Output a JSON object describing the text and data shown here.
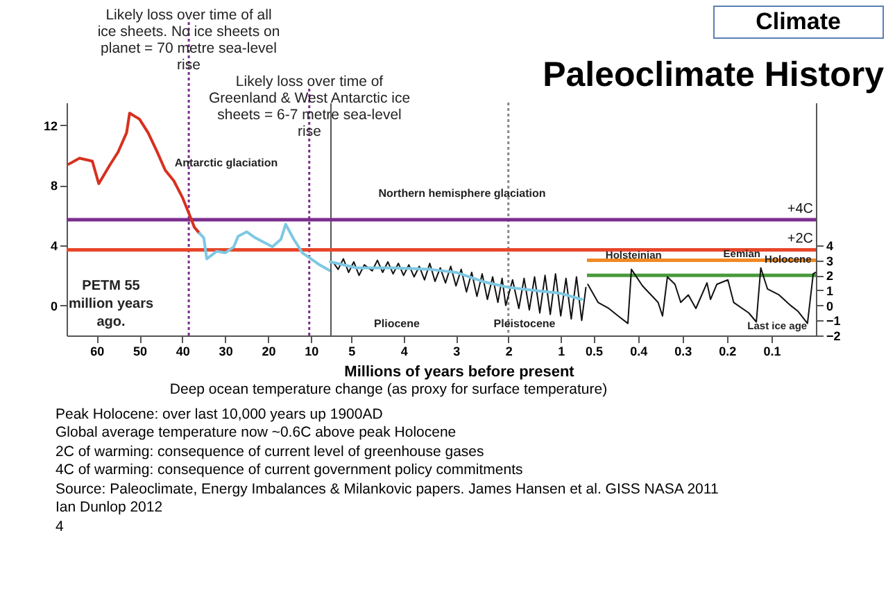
{
  "chart_data": [
    {
      "type": "line",
      "xlim": [
        67,
        5.5
      ],
      "xticks": [
        60,
        50,
        40,
        30,
        20,
        10
      ],
      "ylim": [
        -2,
        13.5
      ],
      "yticks": [
        0,
        4,
        8,
        12
      ],
      "grid": false,
      "marker": "none",
      "series": [
        {
          "color": "#d7301f",
          "x": [
            66.5,
            64,
            61,
            59.5,
            57,
            55,
            53,
            52.3,
            50,
            48,
            46,
            44,
            42,
            40,
            38,
            37.2,
            36
          ],
          "values": [
            9.4,
            9.8,
            9.6,
            8.1,
            9.3,
            10.2,
            11.5,
            12.8,
            12.4,
            11.5,
            10.3,
            9.0,
            8.3,
            7.2,
            5.8,
            5.2,
            4.8
          ]
        },
        {
          "color": "#7ec8e3",
          "x": [
            36,
            35,
            34.3,
            32,
            30,
            28,
            27,
            25,
            23,
            21,
            19,
            17,
            15.9,
            14,
            12,
            10,
            8,
            5.5
          ],
          "values": [
            4.8,
            4.5,
            3.1,
            3.6,
            3.5,
            3.9,
            4.6,
            4.9,
            4.5,
            4.2,
            3.9,
            4.4,
            5.4,
            4.4,
            3.5,
            3.1,
            2.7,
            2.3
          ]
        }
      ],
      "ref_lines": [
        {
          "axis": "x",
          "value": 38.5,
          "label": null,
          "color": "#7b2d8e",
          "line_style": "dotted"
        },
        {
          "axis": "x",
          "value": 10.4,
          "label": null,
          "color": "#7b2d8e",
          "line_style": "dotted"
        },
        {
          "axis": "y",
          "value": 5.7,
          "label": null,
          "color": "#7b2d8e",
          "line_style": "solid"
        },
        {
          "axis": "y",
          "value": 3.7,
          "label": null,
          "color": "#e8462a",
          "line_style": "solid"
        }
      ],
      "annotations": [
        "Likely loss over time of all ice sheets. No ice sheets on planet = 70 metre sea-level rise",
        "Likely loss over time of Greenland & West Antarctic ice sheets = 6-7 metre sea-level rise",
        "Antarctic glaciation",
        "PETM 55 million years ago."
      ]
    },
    {
      "type": "line",
      "xlabel": "Millions of years before present",
      "xlim": [
        5.4,
        0.5
      ],
      "xticks": [
        5,
        4,
        3,
        2,
        1
      ],
      "ylim": [
        -2,
        13.5
      ],
      "tick_labels": "x",
      "grid": false,
      "marker": "none",
      "series": [
        {
          "color": "#111111",
          "x": [
            5.35,
            5.25,
            5.15,
            5.05,
            4.95,
            4.85,
            4.75,
            4.6,
            4.5,
            4.4,
            4.3,
            4.2,
            4.1,
            4.0,
            3.9,
            3.8,
            3.7,
            3.6,
            3.5,
            3.4,
            3.3,
            3.2,
            3.1,
            3.0,
            2.9,
            2.8,
            2.7,
            2.6,
            2.5,
            2.4,
            2.3,
            2.2,
            2.12,
            2.05,
            1.92,
            1.8,
            1.7,
            1.6,
            1.5,
            1.4,
            1.3,
            1.2,
            1.1,
            1.0,
            0.9,
            0.8,
            0.7,
            0.6,
            0.52
          ],
          "values": [
            2.9,
            2.4,
            3.1,
            2.2,
            2.9,
            2.0,
            2.7,
            2.3,
            3.0,
            2.2,
            2.9,
            2.1,
            2.8,
            2.0,
            2.7,
            1.9,
            2.6,
            1.7,
            2.8,
            1.6,
            2.5,
            1.5,
            2.6,
            1.3,
            2.4,
            0.9,
            2.2,
            0.6,
            2.1,
            0.4,
            1.9,
            0.2,
            1.8,
            0.0,
            1.7,
            -0.2,
            1.8,
            -0.3,
            1.9,
            -0.5,
            2.0,
            -0.6,
            2.1,
            -0.7,
            1.8,
            -0.9,
            1.9,
            -1.0,
            1.2
          ]
        },
        {
          "color": "#7ec8e3",
          "x": [
            5.4,
            4.9,
            4.2,
            3.5,
            3.0,
            2.5,
            2.0,
            1.5,
            1.0,
            0.6
          ],
          "values": [
            2.9,
            2.5,
            2.5,
            2.4,
            2.2,
            1.6,
            1.2,
            1.0,
            0.8,
            0.4
          ]
        }
      ],
      "ref_lines": [
        {
          "axis": "x",
          "value": 2,
          "label": null,
          "color": "#888888",
          "line_style": "dotted"
        },
        {
          "axis": "y",
          "value": 5.7,
          "label": null,
          "color": "#7b2d8e",
          "line_style": "solid"
        },
        {
          "axis": "y",
          "value": 3.7,
          "label": null,
          "color": "#e8462a",
          "line_style": "solid"
        }
      ],
      "annotations": [
        "Northern hemisphere glaciation",
        "Pliocene",
        "Pleistocene",
        "Deep ocean temperature change (as proxy for surface temperature)"
      ]
    },
    {
      "type": "line",
      "title": "Paleoclimate History",
      "subtitle": "Climate",
      "xlim": [
        0.515,
        0
      ],
      "xticks": [
        0.5,
        0.4,
        0.3,
        0.2,
        0.1
      ],
      "ylim": [
        -2,
        13.5
      ],
      "yticks": [
        -2,
        -1,
        0,
        1,
        2,
        3,
        4
      ],
      "grid": false,
      "marker": "none",
      "series": [
        {
          "color": "#111111",
          "x": [
            0.513,
            0.49,
            0.466,
            0.445,
            0.423,
            0.415,
            0.39,
            0.355,
            0.345,
            0.334,
            0.317,
            0.304,
            0.287,
            0.27,
            0.245,
            0.237,
            0.223,
            0.198,
            0.185,
            0.151,
            0.134,
            0.124,
            0.109,
            0.083,
            0.057,
            0.04,
            0.019,
            0.006,
            0.001
          ],
          "values": [
            1.4,
            0.2,
            -0.2,
            -0.7,
            -1.2,
            2.4,
            1.3,
            0.2,
            -0.7,
            1.9,
            1.4,
            0.2,
            0.7,
            -0.2,
            1.5,
            0.4,
            1.4,
            1.7,
            0.2,
            -0.5,
            -1.1,
            2.5,
            1.1,
            0.7,
            0,
            -0.4,
            -1.2,
            2.1,
            2.2
          ]
        }
      ],
      "ref_lines": [
        {
          "axis": "y",
          "value": 5.7,
          "label": "+4C",
          "color": "#7b2d8e",
          "line_style": "solid"
        },
        {
          "axis": "y",
          "value": 3.7,
          "label": "+2C",
          "color": "#e8462a",
          "line_style": "solid"
        },
        {
          "axis": "y",
          "value": 3,
          "label": null,
          "color": "#f08a24",
          "line_style": "solid"
        },
        {
          "axis": "y",
          "value": 2,
          "label": null,
          "color": "#4a9a3c",
          "line_style": "solid"
        }
      ],
      "annotations": [
        {
          "text": "Holsteinian",
          "x": 0.41,
          "y": 2.3
        },
        {
          "text": "Eemian",
          "x": 0.125,
          "y": 2.4
        },
        {
          "text": "Holocene",
          "x": 0.01,
          "y": 2
        },
        {
          "text": "Last ice age",
          "x": 0.02,
          "y": -1.4
        },
        "Peak Holocene: over last 10,000 years up 1900AD",
        "Global average temperature now ~0.6C above peak Holocene",
        "2C of warming: consequence of current level of greenhouse gases",
        "4C of warming: consequence of current government policy commitments",
        "Source: Paleoclimate, Energy Imbalances & Milankovic papers. James Hansen et al. GISS NASA 2011",
        "Ian Dunlop 2012",
        "4"
      ]
    }
  ]
}
